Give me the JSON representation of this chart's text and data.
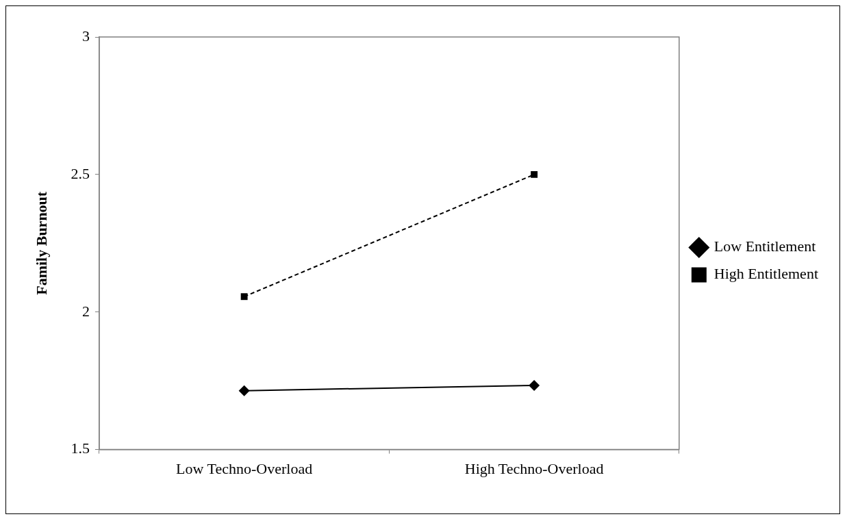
{
  "chart_data": {
    "type": "line",
    "ylabel": "Family Burnout",
    "categories": [
      "Low Techno-Overload",
      "High Techno-Overload"
    ],
    "series": [
      {
        "name": "Low Entitlement",
        "color": "#000000",
        "values": [
          1.714,
          1.733
        ],
        "marker": "diamond",
        "line_style": "solid"
      },
      {
        "name": "High Entitlement",
        "color": "#000000",
        "values": [
          2.056,
          2.5
        ],
        "marker": "square",
        "line_style": "dashed"
      }
    ],
    "ylim": [
      1.5,
      3
    ],
    "yticks": [
      1.5,
      2,
      2.5,
      3
    ],
    "grid": false,
    "legend": "right"
  }
}
